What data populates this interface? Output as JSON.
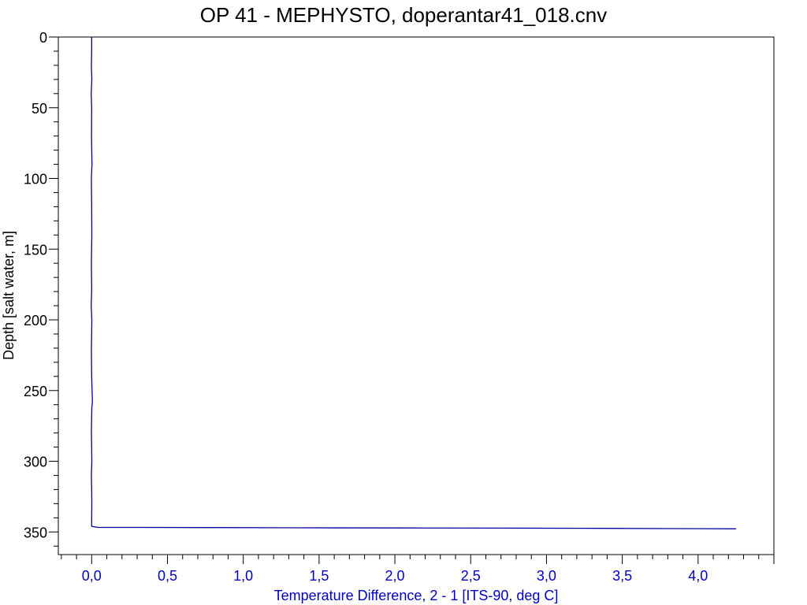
{
  "chart_data": {
    "type": "line",
    "title": "OP 41 - MEPHYSTO, doperantar41_018.cnv",
    "xlabel": "Temperature Difference, 2 - 1 [ITS-90, deg C]",
    "ylabel": "Depth [salt water, m]",
    "xlim": [
      -0.22,
      4.5
    ],
    "ylim": [
      366,
      0
    ],
    "y_inverted": true,
    "grid": false,
    "x_ticks": [
      "0,0",
      "0,5",
      "1,0",
      "1,5",
      "2,0",
      "2,5",
      "3,0",
      "3,5",
      "4,0"
    ],
    "x_tick_values": [
      0,
      0.5,
      1.0,
      1.5,
      2.0,
      2.5,
      3.0,
      3.5,
      4.0
    ],
    "y_ticks": [
      "0",
      "50",
      "100",
      "150",
      "200",
      "250",
      "300",
      "350"
    ],
    "y_tick_values": [
      0,
      50,
      100,
      150,
      200,
      250,
      300,
      350
    ],
    "series_color": "#0000a0",
    "axis_color": "#000000",
    "x_tick_color": "#0000c0",
    "series": [
      {
        "x": [
          0.0,
          0.0,
          -0.002,
          0.001,
          -0.003,
          0.0,
          -0.001,
          0.002,
          -0.002,
          0.0,
          0.001,
          -0.002,
          0.0,
          -0.003,
          0.001,
          0.0,
          -0.002,
          0.0,
          0.005,
          0.001,
          -0.002,
          0.0,
          0.001,
          -0.002,
          0.0,
          0.001,
          0.0,
          0.0,
          0.04,
          0.3,
          0.8,
          1.15,
          1.6,
          2.2,
          2.8,
          3.22,
          3.8,
          4.25
        ],
        "y": [
          0,
          10,
          20,
          30,
          40,
          50,
          70,
          90,
          100,
          120,
          140,
          160,
          178,
          190,
          200,
          210,
          220,
          240,
          258,
          262,
          280,
          290,
          300,
          310,
          320,
          330,
          340,
          346,
          346.8,
          346.8,
          346.9,
          347.0,
          347.1,
          347.2,
          347.3,
          347.4,
          347.6,
          347.8
        ]
      }
    ]
  }
}
